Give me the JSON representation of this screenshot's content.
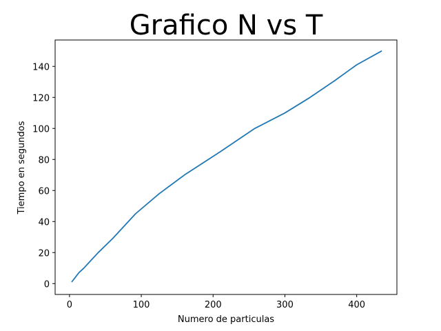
{
  "chart_data": {
    "type": "line",
    "title": "Grafico N vs T",
    "xlabel": "Numero de particulas",
    "ylabel": "Tiempo en segundos",
    "xlim": [
      -20,
      456
    ],
    "ylim": [
      -7,
      157
    ],
    "xticks": [
      0,
      100,
      200,
      300,
      400
    ],
    "yticks": [
      0,
      20,
      40,
      60,
      80,
      100,
      120,
      140
    ],
    "grid": false,
    "line_color": "#1f77b4",
    "series": [
      {
        "x": [
          3,
          8,
          13,
          20,
          30,
          40,
          60,
          92,
          125,
          160,
          210,
          258,
          300,
          335,
          370,
          400,
          435
        ],
        "y": [
          1,
          4,
          7,
          10,
          15,
          20,
          29,
          45,
          58,
          70,
          85,
          100,
          110,
          120,
          131,
          141,
          150
        ]
      }
    ]
  }
}
